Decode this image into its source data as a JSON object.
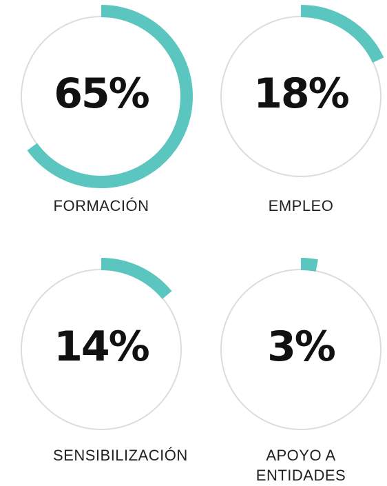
{
  "chart_data": {
    "type": "progress-ring",
    "categories": [
      "FORMACIÓN",
      "EMPLEO",
      "SENSIBILIZACIÓN",
      "APOYO A ENTIDADES"
    ],
    "values": [
      65,
      18,
      14,
      3
    ],
    "value_labels": [
      "65%",
      "18%",
      "14%",
      "3%"
    ],
    "ylim": [
      0,
      100
    ],
    "color": "#5bc6bf"
  }
}
